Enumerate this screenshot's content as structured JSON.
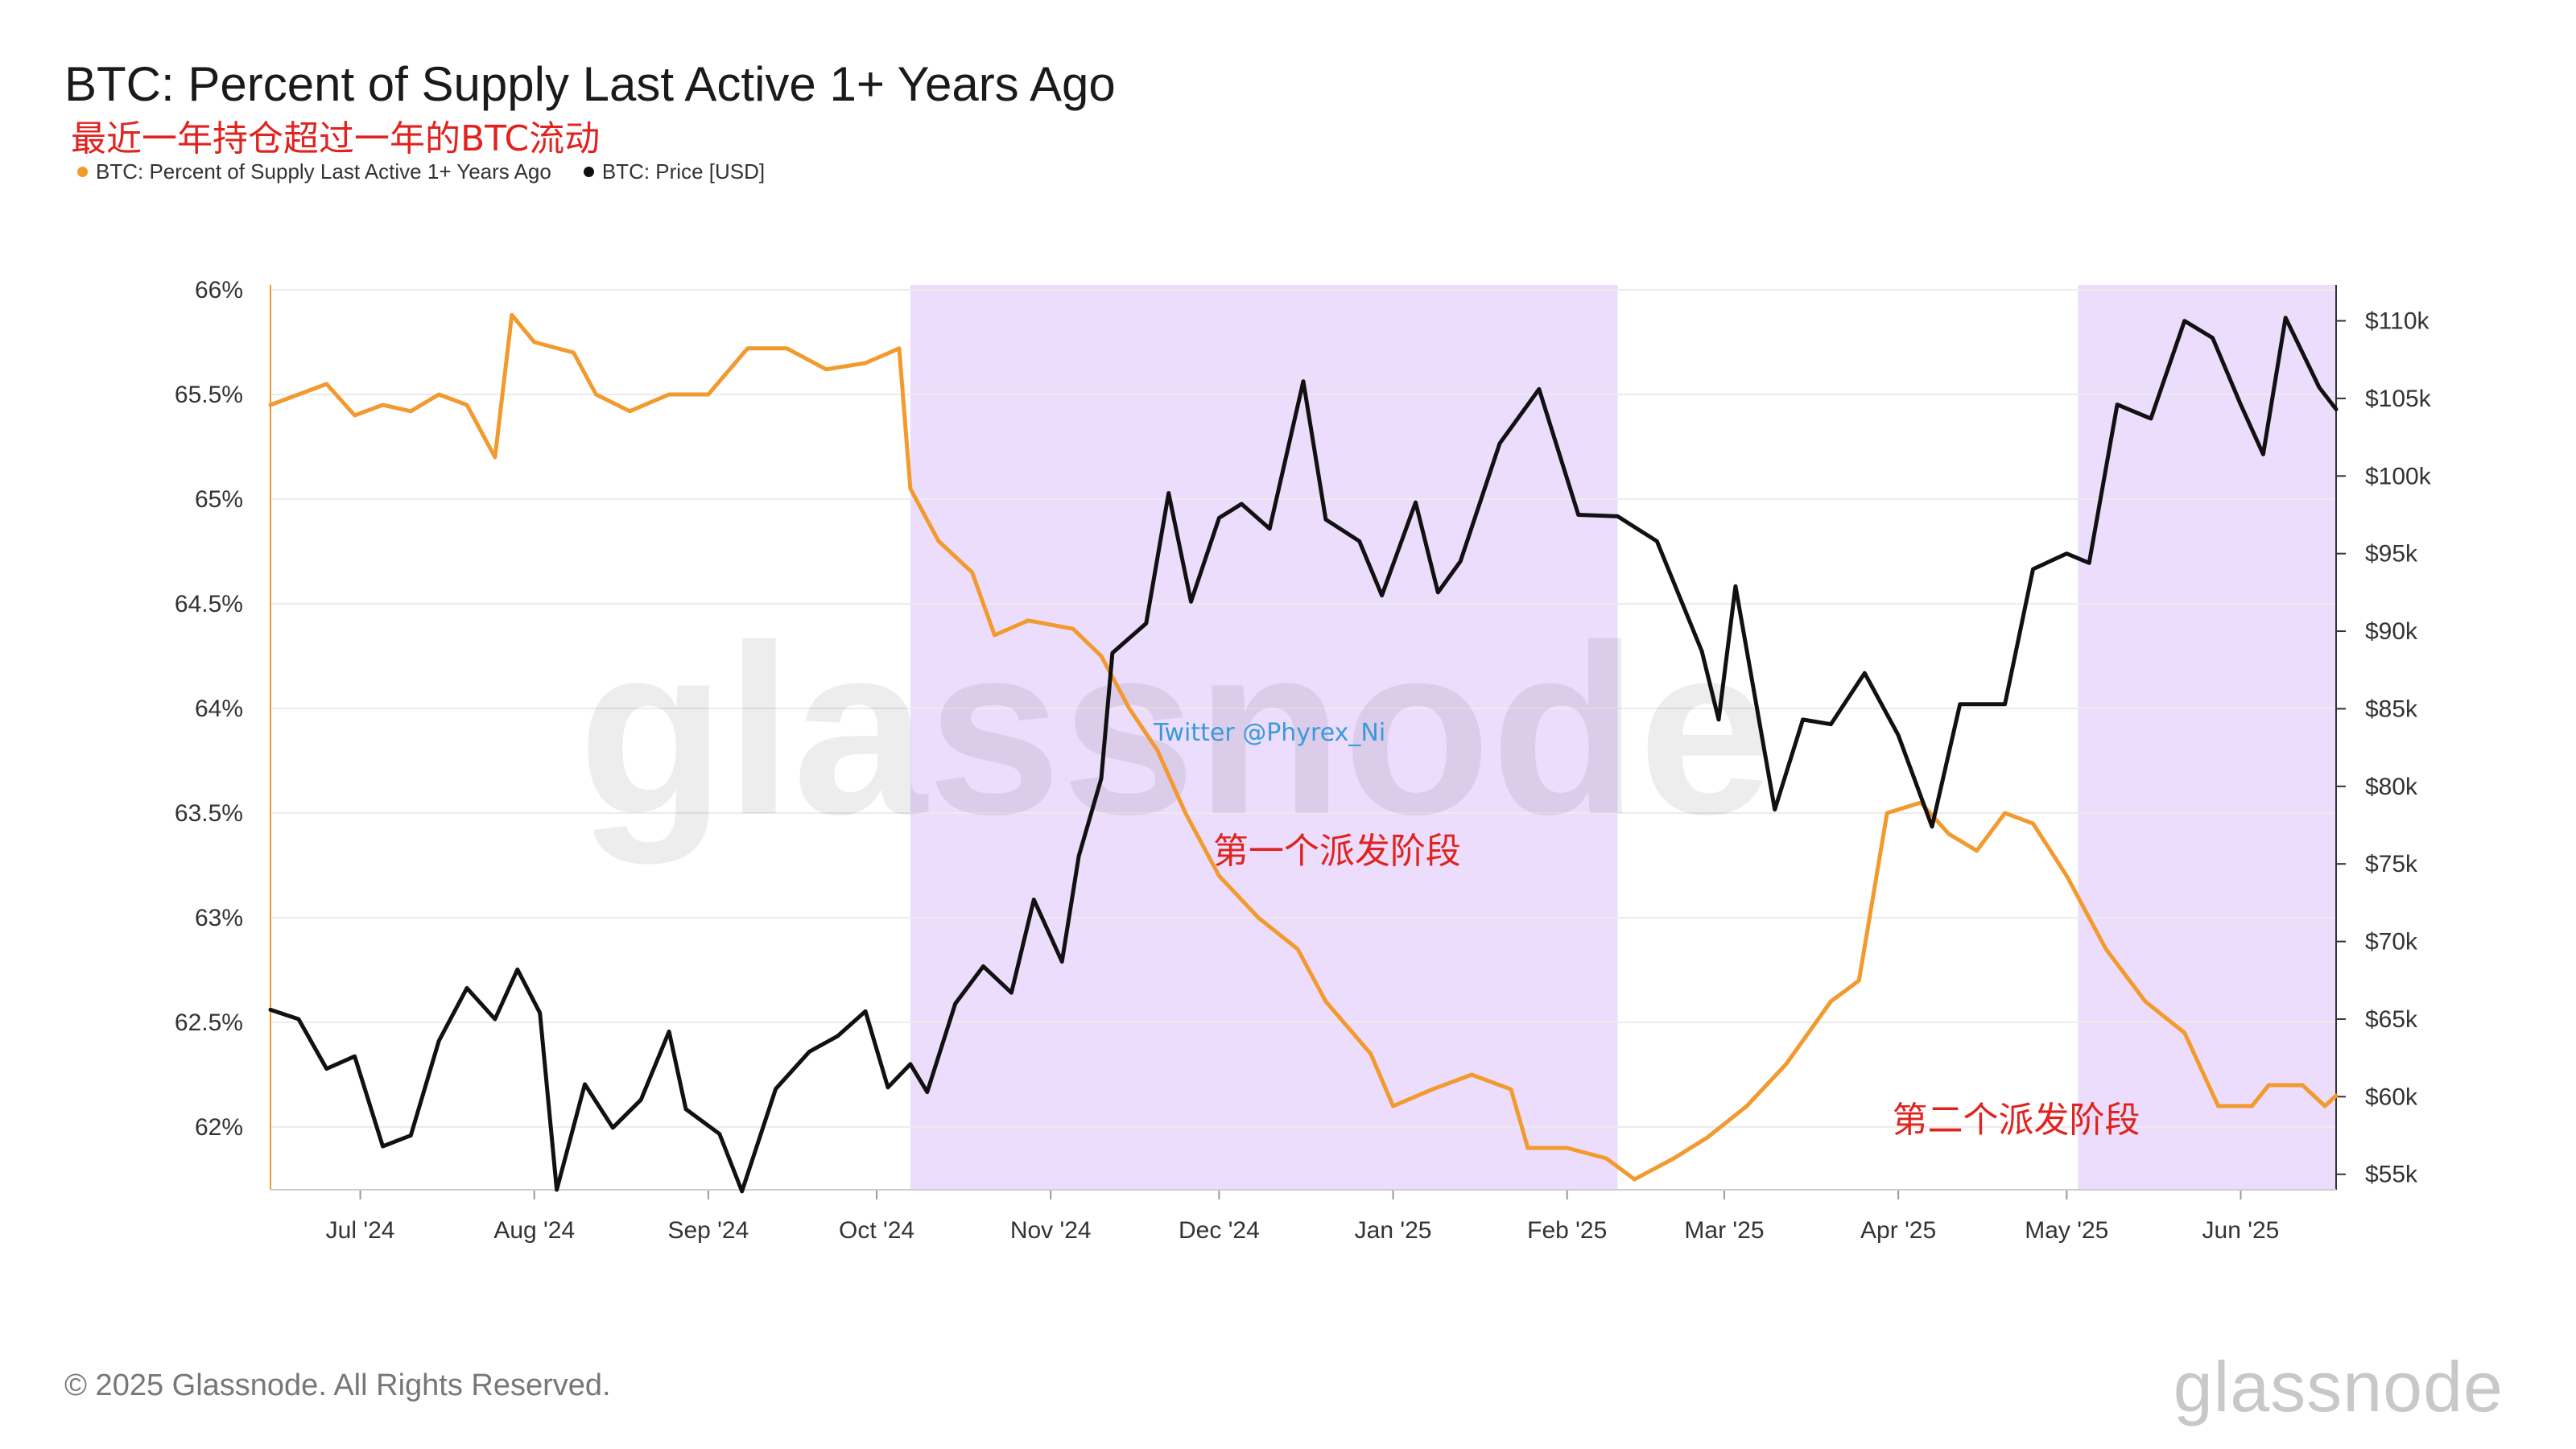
{
  "colors": {
    "supply": "#f29a2e",
    "price": "#111111",
    "band": "#e6d2fb",
    "accent": "#e0231f"
  },
  "chart_data": {
    "type": "line",
    "title": "BTC: Percent of Supply Last Active 1+ Years Ago",
    "subtitle": "最近一年持仓超过一年的BTC流动",
    "x_ticks": [
      "Jul '24",
      "Aug '24",
      "Sep '24",
      "Oct '24",
      "Nov '24",
      "Dec '24",
      "Jan '25",
      "Feb '25",
      "Mar '25",
      "Apr '25",
      "May '25",
      "Jun '25"
    ],
    "y_left": {
      "ticks": [
        "66%",
        "65.5%",
        "65%",
        "64.5%",
        "64%",
        "63.5%",
        "63%",
        "62.5%",
        "62%"
      ],
      "range": [
        61.7,
        66.0
      ]
    },
    "y_right": {
      "ticks": [
        "$110k",
        "$105k",
        "$100k",
        "$95k",
        "$90k",
        "$85k",
        "$80k",
        "$75k",
        "$70k",
        "$65k",
        "$60k",
        "$55k"
      ],
      "range": [
        54000,
        112000
      ]
    },
    "x_range": [
      "2024-06-15",
      "2025-06-18"
    ],
    "series": [
      {
        "name": "BTC: Percent of Supply Last Active 1+ Years Ago",
        "axis": "left",
        "color": "#f29a2e",
        "points": [
          [
            "2024-06-15",
            65.45
          ],
          [
            "2024-06-20",
            65.5
          ],
          [
            "2024-06-25",
            65.55
          ],
          [
            "2024-06-30",
            65.4
          ],
          [
            "2024-07-05",
            65.45
          ],
          [
            "2024-07-10",
            65.42
          ],
          [
            "2024-07-15",
            65.5
          ],
          [
            "2024-07-20",
            65.45
          ],
          [
            "2024-07-25",
            65.2
          ],
          [
            "2024-07-28",
            65.88
          ],
          [
            "2024-08-01",
            65.75
          ],
          [
            "2024-08-08",
            65.7
          ],
          [
            "2024-08-12",
            65.5
          ],
          [
            "2024-08-18",
            65.42
          ],
          [
            "2024-08-25",
            65.5
          ],
          [
            "2024-09-01",
            65.5
          ],
          [
            "2024-09-08",
            65.72
          ],
          [
            "2024-09-15",
            65.72
          ],
          [
            "2024-09-22",
            65.62
          ],
          [
            "2024-09-29",
            65.65
          ],
          [
            "2024-10-05",
            65.72
          ],
          [
            "2024-10-07",
            65.05
          ],
          [
            "2024-10-12",
            64.8
          ],
          [
            "2024-10-18",
            64.65
          ],
          [
            "2024-10-22",
            64.35
          ],
          [
            "2024-10-28",
            64.42
          ],
          [
            "2024-11-05",
            64.38
          ],
          [
            "2024-11-10",
            64.25
          ],
          [
            "2024-11-15",
            64.0
          ],
          [
            "2024-11-20",
            63.8
          ],
          [
            "2024-11-25",
            63.5
          ],
          [
            "2024-12-01",
            63.2
          ],
          [
            "2024-12-08",
            63.0
          ],
          [
            "2024-12-15",
            62.85
          ],
          [
            "2024-12-20",
            62.6
          ],
          [
            "2024-12-28",
            62.35
          ],
          [
            "2025-01-01",
            62.1
          ],
          [
            "2025-01-08",
            62.18
          ],
          [
            "2025-01-15",
            62.25
          ],
          [
            "2025-01-22",
            62.18
          ],
          [
            "2025-01-25",
            61.9
          ],
          [
            "2025-02-01",
            61.9
          ],
          [
            "2025-02-08",
            61.85
          ],
          [
            "2025-02-13",
            61.75
          ],
          [
            "2025-02-20",
            61.85
          ],
          [
            "2025-02-26",
            61.95
          ],
          [
            "2025-03-05",
            62.1
          ],
          [
            "2025-03-12",
            62.3
          ],
          [
            "2025-03-20",
            62.6
          ],
          [
            "2025-03-25",
            62.7
          ],
          [
            "2025-03-30",
            63.5
          ],
          [
            "2025-04-05",
            63.55
          ],
          [
            "2025-04-10",
            63.4
          ],
          [
            "2025-04-15",
            63.32
          ],
          [
            "2025-04-20",
            63.5
          ],
          [
            "2025-04-25",
            63.45
          ],
          [
            "2025-05-01",
            63.2
          ],
          [
            "2025-05-08",
            62.85
          ],
          [
            "2025-05-15",
            62.6
          ],
          [
            "2025-05-22",
            62.45
          ],
          [
            "2025-05-28",
            62.1
          ],
          [
            "2025-06-03",
            62.1
          ],
          [
            "2025-06-06",
            62.2
          ],
          [
            "2025-06-12",
            62.2
          ],
          [
            "2025-06-16",
            62.1
          ],
          [
            "2025-06-18",
            62.15
          ]
        ]
      },
      {
        "name": "BTC: Price [USD]",
        "axis": "right",
        "color": "#111111",
        "points": [
          [
            "2024-06-15",
            65600
          ],
          [
            "2024-06-20",
            65000
          ],
          [
            "2024-06-25",
            61800
          ],
          [
            "2024-06-30",
            62600
          ],
          [
            "2024-07-05",
            56800
          ],
          [
            "2024-07-10",
            57500
          ],
          [
            "2024-07-15",
            63600
          ],
          [
            "2024-07-20",
            67000
          ],
          [
            "2024-07-25",
            65000
          ],
          [
            "2024-07-29",
            68200
          ],
          [
            "2024-08-02",
            65400
          ],
          [
            "2024-08-05",
            54000
          ],
          [
            "2024-08-10",
            60800
          ],
          [
            "2024-08-15",
            58000
          ],
          [
            "2024-08-20",
            59800
          ],
          [
            "2024-08-25",
            64200
          ],
          [
            "2024-08-28",
            59200
          ],
          [
            "2024-09-03",
            57600
          ],
          [
            "2024-09-07",
            53900
          ],
          [
            "2024-09-13",
            60500
          ],
          [
            "2024-09-19",
            62900
          ],
          [
            "2024-09-24",
            63900
          ],
          [
            "2024-09-29",
            65500
          ],
          [
            "2024-10-03",
            60600
          ],
          [
            "2024-10-07",
            62100
          ],
          [
            "2024-10-10",
            60300
          ],
          [
            "2024-10-15",
            66000
          ],
          [
            "2024-10-20",
            68400
          ],
          [
            "2024-10-25",
            66700
          ],
          [
            "2024-10-29",
            72700
          ],
          [
            "2024-11-03",
            68700
          ],
          [
            "2024-11-06",
            75500
          ],
          [
            "2024-11-10",
            80500
          ],
          [
            "2024-11-12",
            88600
          ],
          [
            "2024-11-18",
            90500
          ],
          [
            "2024-11-22",
            98900
          ],
          [
            "2024-11-26",
            91900
          ],
          [
            "2024-12-01",
            97300
          ],
          [
            "2024-12-05",
            98200
          ],
          [
            "2024-12-10",
            96600
          ],
          [
            "2024-12-16",
            106100
          ],
          [
            "2024-12-20",
            97200
          ],
          [
            "2024-12-26",
            95800
          ],
          [
            "2024-12-30",
            92300
          ],
          [
            "2025-01-05",
            98300
          ],
          [
            "2025-01-09",
            92500
          ],
          [
            "2025-01-13",
            94500
          ],
          [
            "2025-01-20",
            102100
          ],
          [
            "2025-01-27",
            105600
          ],
          [
            "2025-02-03",
            97500
          ],
          [
            "2025-02-10",
            97400
          ],
          [
            "2025-02-17",
            95800
          ],
          [
            "2025-02-25",
            88700
          ],
          [
            "2025-02-28",
            84300
          ],
          [
            "2025-03-03",
            92900
          ],
          [
            "2025-03-10",
            78500
          ],
          [
            "2025-03-15",
            84300
          ],
          [
            "2025-03-20",
            84000
          ],
          [
            "2025-03-26",
            87300
          ],
          [
            "2025-04-01",
            83300
          ],
          [
            "2025-04-07",
            77400
          ],
          [
            "2025-04-12",
            85300
          ],
          [
            "2025-04-20",
            85300
          ],
          [
            "2025-04-25",
            94000
          ],
          [
            "2025-05-01",
            95000
          ],
          [
            "2025-05-05",
            94400
          ],
          [
            "2025-05-10",
            104600
          ],
          [
            "2025-05-16",
            103700
          ],
          [
            "2025-05-22",
            110000
          ],
          [
            "2025-05-27",
            108900
          ],
          [
            "2025-06-01",
            104600
          ],
          [
            "2025-06-05",
            101400
          ],
          [
            "2025-06-09",
            110200
          ],
          [
            "2025-06-15",
            105700
          ],
          [
            "2025-06-18",
            104300
          ]
        ]
      }
    ],
    "bands": [
      {
        "from": "2024-10-07",
        "to": "2025-02-10",
        "label": "第一个派发阶段"
      },
      {
        "from": "2025-05-03",
        "to": "2025-06-18",
        "label": "第二个派发阶段"
      }
    ],
    "annotation": "Twitter @Phyrex_Ni",
    "watermark": "glassnode"
  },
  "legend": [
    {
      "label": "BTC: Percent of Supply Last Active 1+ Years Ago",
      "color": "#f29a2e"
    },
    {
      "label": "BTC: Price [USD]",
      "color": "#111111"
    }
  ],
  "footer": {
    "copyright": "© 2025 Glassnode. All Rights Reserved.",
    "brand": "glassnode"
  }
}
